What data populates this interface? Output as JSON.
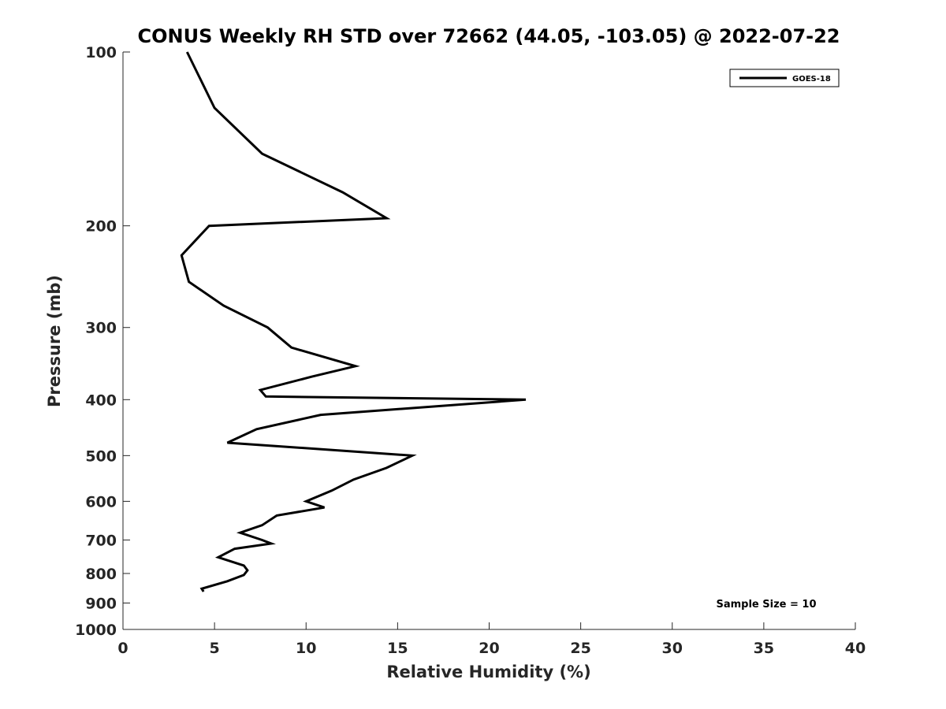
{
  "chart_data": {
    "type": "line",
    "title": "CONUS Weekly RH STD over 72662 (44.05, -103.05) @ 2022-07-22",
    "xlabel": "Relative Humidity (%)",
    "ylabel": "Pressure (mb)",
    "xlim": [
      0,
      40
    ],
    "ylim": [
      100,
      1000
    ],
    "y_scale": "log",
    "y_reversed": true,
    "x_ticks": [
      0,
      5,
      10,
      15,
      20,
      25,
      30,
      35,
      40
    ],
    "y_ticks": [
      100,
      200,
      300,
      400,
      500,
      600,
      700,
      800,
      900,
      1000
    ],
    "grid": false,
    "legend": {
      "position": "top-right",
      "entries": [
        "GOES-18"
      ]
    },
    "annotation": "Sample Size = 10",
    "series": [
      {
        "name": "GOES-18",
        "color": "#000000",
        "points": [
          {
            "x": 3.5,
            "y": 100
          },
          {
            "x": 5.0,
            "y": 125
          },
          {
            "x": 7.6,
            "y": 150
          },
          {
            "x": 12.0,
            "y": 175
          },
          {
            "x": 14.4,
            "y": 194
          },
          {
            "x": 4.7,
            "y": 200
          },
          {
            "x": 3.2,
            "y": 225
          },
          {
            "x": 3.6,
            "y": 250
          },
          {
            "x": 5.5,
            "y": 275
          },
          {
            "x": 7.9,
            "y": 300
          },
          {
            "x": 9.2,
            "y": 325
          },
          {
            "x": 12.7,
            "y": 350
          },
          {
            "x": 10.3,
            "y": 365
          },
          {
            "x": 7.5,
            "y": 385
          },
          {
            "x": 7.8,
            "y": 395
          },
          {
            "x": 22.0,
            "y": 400
          },
          {
            "x": 10.8,
            "y": 425
          },
          {
            "x": 7.3,
            "y": 450
          },
          {
            "x": 5.7,
            "y": 475
          },
          {
            "x": 15.8,
            "y": 500
          },
          {
            "x": 14.4,
            "y": 525
          },
          {
            "x": 12.6,
            "y": 550
          },
          {
            "x": 11.4,
            "y": 575
          },
          {
            "x": 10.0,
            "y": 600
          },
          {
            "x": 11.0,
            "y": 615
          },
          {
            "x": 8.4,
            "y": 635
          },
          {
            "x": 7.6,
            "y": 660
          },
          {
            "x": 6.4,
            "y": 680
          },
          {
            "x": 7.6,
            "y": 700
          },
          {
            "x": 8.1,
            "y": 710
          },
          {
            "x": 6.1,
            "y": 725
          },
          {
            "x": 5.2,
            "y": 750
          },
          {
            "x": 6.6,
            "y": 775
          },
          {
            "x": 6.8,
            "y": 790
          },
          {
            "x": 6.6,
            "y": 805
          },
          {
            "x": 5.7,
            "y": 825
          },
          {
            "x": 4.3,
            "y": 850
          },
          {
            "x": 4.4,
            "y": 860
          }
        ]
      }
    ]
  }
}
